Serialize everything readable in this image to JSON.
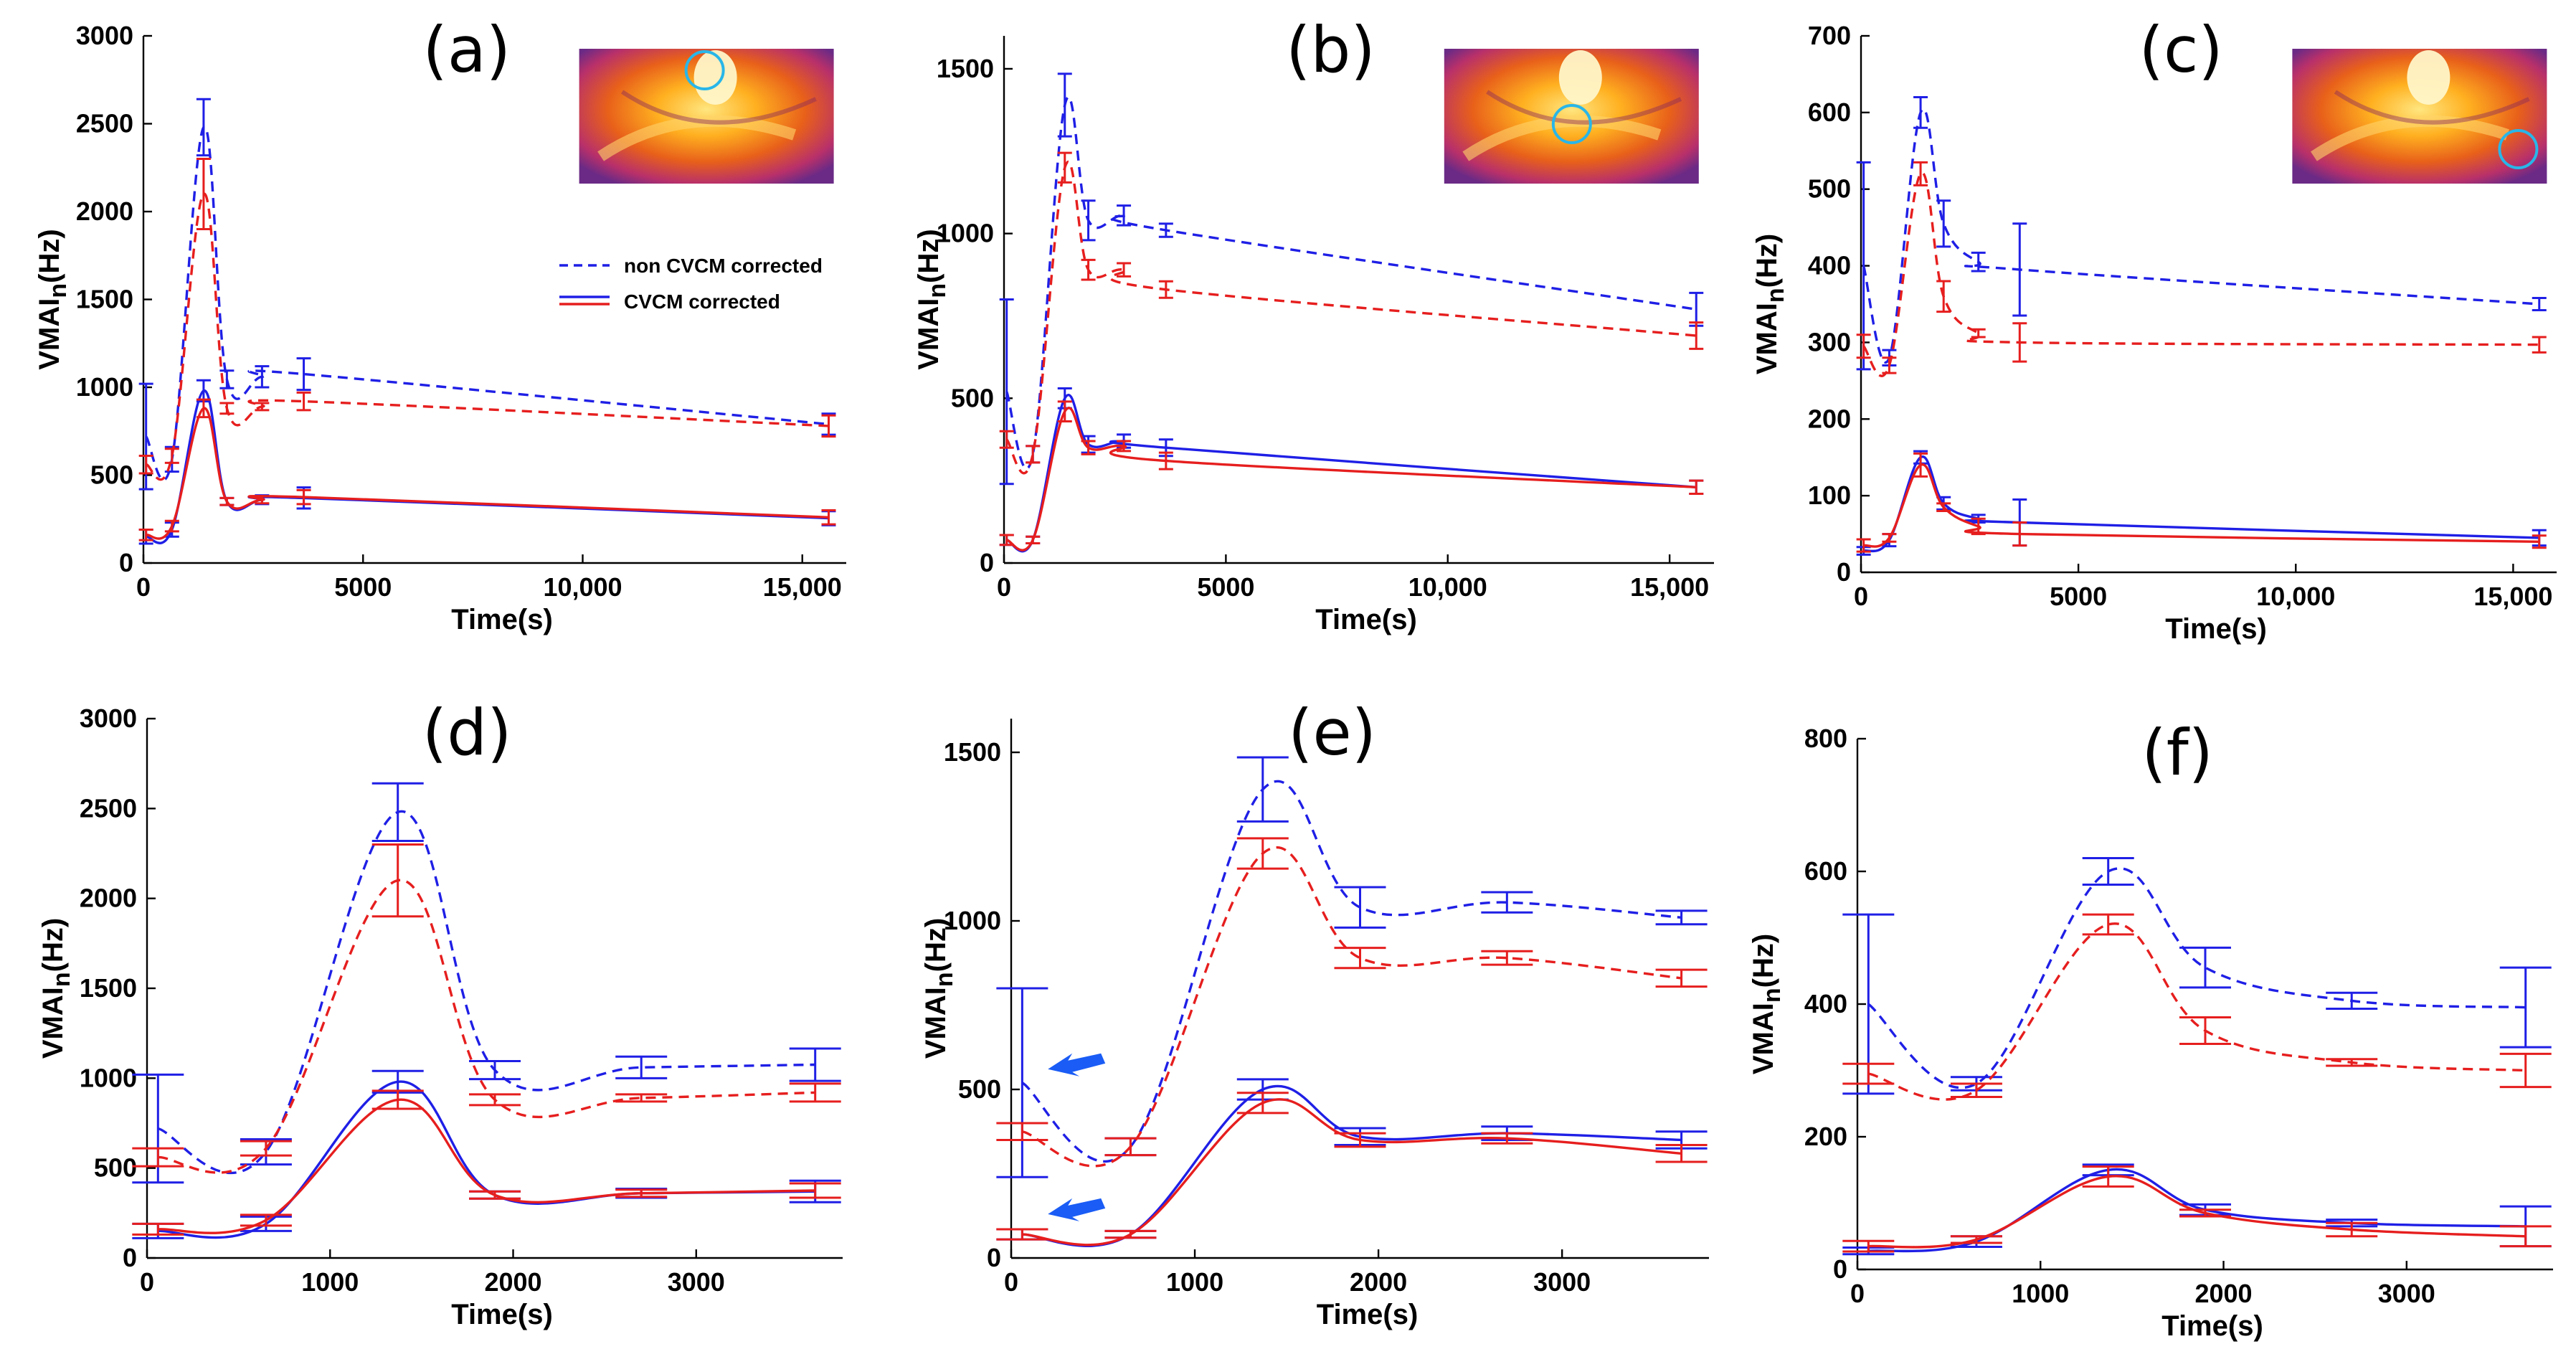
{
  "colors": {
    "blue": "#1f1fe6",
    "red": "#e61e1e",
    "arrow": "#1a5cf5",
    "inset_circle": "#29b6e8"
  },
  "legend": {
    "dashed_label": "non CVCM corrected",
    "solid_label": "CVCM corrected"
  },
  "chart_data": [
    {
      "panel": "(a)",
      "type": "line",
      "xlabel": "Time(s)",
      "ylabel_main": "VMAI",
      "ylabel_sub": "n",
      "ylabel_unit": "(Hz)",
      "xlim": [
        0,
        16000
      ],
      "ylim": [
        0,
        3000
      ],
      "xticks": [
        0,
        5000,
        10000,
        15000
      ],
      "xtick_labels": [
        "0",
        "5000",
        "10,000",
        "15,000"
      ],
      "yticks": [
        0,
        500,
        1000,
        1500,
        2000,
        2500,
        3000
      ],
      "ytick_labels": [
        "0",
        "500",
        "1000",
        "1500",
        "2000",
        "2500",
        "3000"
      ],
      "inset": true,
      "inset_marker": "top",
      "series": [
        {
          "name": "non CVCM corrected, blue",
          "style": "dashed",
          "color": "blue",
          "x": [
            60,
            650,
            1370,
            1900,
            2700,
            3650,
            15600
          ],
          "y": [
            720,
            590,
            2480,
            1045,
            1060,
            1075,
            790
          ],
          "err": [
            300,
            70,
            160,
            50,
            60,
            90,
            60
          ]
        },
        {
          "name": "non CVCM corrected, red",
          "style": "dashed",
          "color": "red",
          "x": [
            60,
            650,
            1370,
            1900,
            2700,
            3650,
            15600
          ],
          "y": [
            560,
            610,
            2100,
            880,
            890,
            920,
            780
          ],
          "err": [
            50,
            40,
            200,
            30,
            20,
            50,
            60
          ]
        },
        {
          "name": "CVCM corrected, blue",
          "style": "solid",
          "color": "blue",
          "x": [
            60,
            650,
            1370,
            1900,
            2700,
            3650,
            15600
          ],
          "y": [
            150,
            190,
            980,
            350,
            360,
            370,
            255
          ],
          "err": [
            40,
            40,
            60,
            20,
            25,
            60,
            40
          ]
        },
        {
          "name": "CVCM corrected, red",
          "style": "solid",
          "color": "red",
          "x": [
            60,
            650,
            1370,
            1900,
            2700,
            3650,
            15600
          ],
          "y": [
            160,
            210,
            880,
            350,
            360,
            375,
            260
          ],
          "err": [
            30,
            30,
            50,
            20,
            20,
            40,
            40
          ]
        }
      ]
    },
    {
      "panel": "(b)",
      "type": "line",
      "xlabel": "Time(s)",
      "ylabel_main": "VMAI",
      "ylabel_sub": "n",
      "ylabel_unit": "(Hz)",
      "xlim": [
        0,
        16000
      ],
      "ylim": [
        0,
        1600
      ],
      "xticks": [
        0,
        5000,
        10000,
        15000
      ],
      "xtick_labels": [
        "0",
        "5000",
        "10,000",
        "15,000"
      ],
      "yticks": [
        0,
        500,
        1000,
        1500
      ],
      "ytick_labels": [
        "0",
        "500",
        "1000",
        "1500"
      ],
      "inset": true,
      "inset_marker": "center",
      "series": [
        {
          "name": "non CVCM corrected, blue",
          "style": "dashed",
          "color": "blue",
          "x": [
            60,
            650,
            1370,
            1900,
            2700,
            3650,
            15600
          ],
          "y": [
            520,
            330,
            1390,
            1040,
            1055,
            1010,
            770
          ],
          "err": [
            280,
            25,
            95,
            60,
            30,
            20,
            50
          ]
        },
        {
          "name": "non CVCM corrected, red",
          "style": "dashed",
          "color": "red",
          "x": [
            60,
            650,
            1370,
            1900,
            2700,
            3650,
            15600
          ],
          "y": [
            375,
            330,
            1200,
            890,
            890,
            830,
            690
          ],
          "err": [
            25,
            25,
            45,
            30,
            20,
            25,
            40
          ]
        },
        {
          "name": "CVCM corrected, blue",
          "style": "solid",
          "color": "blue",
          "x": [
            60,
            650,
            1370,
            1900,
            2700,
            3650,
            15600
          ],
          "y": [
            70,
            70,
            500,
            360,
            370,
            350,
            230
          ],
          "err": [
            15,
            10,
            30,
            25,
            20,
            25,
            20
          ]
        },
        {
          "name": "CVCM corrected, red",
          "style": "solid",
          "color": "red",
          "x": [
            60,
            650,
            1370,
            1900,
            2700,
            3650,
            15600
          ],
          "y": [
            70,
            70,
            460,
            350,
            355,
            310,
            230
          ],
          "err": [
            15,
            10,
            30,
            20,
            15,
            25,
            20
          ]
        }
      ]
    },
    {
      "panel": "(c)",
      "type": "line",
      "xlabel": "Time(s)",
      "ylabel_main": "VMAI",
      "ylabel_sub": "n",
      "ylabel_unit": "(Hz)",
      "xlim": [
        0,
        16000
      ],
      "ylim": [
        0,
        700
      ],
      "xticks": [
        0,
        5000,
        10000,
        15000
      ],
      "xtick_labels": [
        "0",
        "5000",
        "10,000",
        "15,000"
      ],
      "yticks": [
        0,
        100,
        200,
        300,
        400,
        500,
        600,
        700
      ],
      "ytick_labels": [
        "0",
        "100",
        "200",
        "300",
        "400",
        "500",
        "600",
        "700"
      ],
      "inset": true,
      "inset_marker": "right",
      "series": [
        {
          "name": "non CVCM corrected, blue",
          "style": "dashed",
          "color": "blue",
          "x": [
            60,
            650,
            1370,
            1900,
            2700,
            3650,
            15600
          ],
          "y": [
            400,
            280,
            600,
            455,
            405,
            395,
            350
          ],
          "err": [
            135,
            10,
            20,
            30,
            12,
            60,
            8
          ]
        },
        {
          "name": "non CVCM corrected, red",
          "style": "dashed",
          "color": "red",
          "x": [
            60,
            650,
            1370,
            1900,
            2700,
            3650,
            15600
          ],
          "y": [
            295,
            270,
            520,
            360,
            312,
            300,
            297
          ],
          "err": [
            15,
            10,
            15,
            20,
            5,
            25,
            10
          ]
        },
        {
          "name": "CVCM corrected, blue",
          "style": "solid",
          "color": "blue",
          "x": [
            60,
            650,
            1370,
            1900,
            2700,
            3650,
            15600
          ],
          "y": [
            28,
            42,
            150,
            90,
            70,
            65,
            45
          ],
          "err": [
            5,
            8,
            8,
            8,
            5,
            30,
            10
          ]
        },
        {
          "name": "CVCM corrected, red",
          "style": "solid",
          "color": "red",
          "x": [
            60,
            650,
            1370,
            1900,
            2700,
            3650,
            15600
          ],
          "y": [
            35,
            45,
            140,
            85,
            60,
            50,
            40
          ],
          "err": [
            8,
            5,
            15,
            5,
            10,
            15,
            8
          ]
        }
      ]
    },
    {
      "panel": "(d)",
      "type": "line",
      "xlabel": "Time(s)",
      "ylabel_main": "VMAI",
      "ylabel_sub": "n",
      "ylabel_unit": "(Hz)",
      "xlim": [
        0,
        3800
      ],
      "ylim": [
        0,
        3000
      ],
      "xticks": [
        0,
        1000,
        2000,
        3000
      ],
      "xtick_labels": [
        "0",
        "1000",
        "2000",
        "3000"
      ],
      "yticks": [
        0,
        500,
        1000,
        1500,
        2000,
        2500,
        3000
      ],
      "ytick_labels": [
        "0",
        "500",
        "1000",
        "1500",
        "2000",
        "2500",
        "3000"
      ],
      "inset": false,
      "series": [
        {
          "name": "non CVCM corrected, blue",
          "style": "dashed",
          "color": "blue",
          "x": [
            60,
            650,
            1370,
            1900,
            2700,
            3650
          ],
          "y": [
            720,
            590,
            2480,
            1045,
            1060,
            1075
          ],
          "err": [
            300,
            70,
            160,
            50,
            60,
            90
          ]
        },
        {
          "name": "non CVCM corrected, red",
          "style": "dashed",
          "color": "red",
          "x": [
            60,
            650,
            1370,
            1900,
            2700,
            3650
          ],
          "y": [
            560,
            610,
            2100,
            880,
            890,
            920
          ],
          "err": [
            50,
            40,
            200,
            30,
            20,
            50
          ]
        },
        {
          "name": "CVCM corrected, blue",
          "style": "solid",
          "color": "blue",
          "x": [
            60,
            650,
            1370,
            1900,
            2700,
            3650
          ],
          "y": [
            150,
            190,
            980,
            350,
            360,
            370
          ],
          "err": [
            40,
            40,
            60,
            20,
            25,
            60
          ]
        },
        {
          "name": "CVCM corrected, red",
          "style": "solid",
          "color": "red",
          "x": [
            60,
            650,
            1370,
            1900,
            2700,
            3650
          ],
          "y": [
            160,
            210,
            880,
            350,
            360,
            375
          ],
          "err": [
            30,
            30,
            50,
            20,
            20,
            40
          ]
        }
      ]
    },
    {
      "panel": "(e)",
      "type": "line",
      "xlabel": "Time(s)",
      "ylabel_main": "VMAI",
      "ylabel_sub": "n",
      "ylabel_unit": "(Hz)",
      "xlim": [
        0,
        3800
      ],
      "ylim": [
        0,
        1600
      ],
      "xticks": [
        0,
        1000,
        2000,
        3000
      ],
      "xtick_labels": [
        "0",
        "1000",
        "2000",
        "3000"
      ],
      "yticks": [
        0,
        500,
        1000,
        1500
      ],
      "ytick_labels": [
        "0",
        "500",
        "1000",
        "1500"
      ],
      "inset": false,
      "arrows": [
        {
          "x": 200,
          "y": 560
        },
        {
          "x": 200,
          "y": 130
        }
      ],
      "series": [
        {
          "name": "non CVCM corrected, blue",
          "style": "dashed",
          "color": "blue",
          "x": [
            60,
            650,
            1370,
            1900,
            2700,
            3650
          ],
          "y": [
            520,
            330,
            1390,
            1040,
            1055,
            1010
          ],
          "err": [
            280,
            25,
            95,
            60,
            30,
            20
          ]
        },
        {
          "name": "non CVCM corrected, red",
          "style": "dashed",
          "color": "red",
          "x": [
            60,
            650,
            1370,
            1900,
            2700,
            3650
          ],
          "y": [
            375,
            330,
            1200,
            890,
            890,
            830
          ],
          "err": [
            25,
            25,
            45,
            30,
            20,
            25
          ]
        },
        {
          "name": "CVCM corrected, blue",
          "style": "solid",
          "color": "blue",
          "x": [
            60,
            650,
            1370,
            1900,
            2700,
            3650
          ],
          "y": [
            70,
            70,
            500,
            360,
            370,
            350
          ],
          "err": [
            15,
            10,
            30,
            25,
            20,
            25
          ]
        },
        {
          "name": "CVCM corrected, red",
          "style": "solid",
          "color": "red",
          "x": [
            60,
            650,
            1370,
            1900,
            2700,
            3650
          ],
          "y": [
            70,
            70,
            460,
            350,
            355,
            310
          ],
          "err": [
            15,
            10,
            30,
            20,
            15,
            25
          ]
        }
      ]
    },
    {
      "panel": "(f)",
      "type": "line",
      "xlabel": "Time(s)",
      "ylabel_main": "VMAI",
      "ylabel_sub": "n",
      "ylabel_unit": "(Hz)",
      "xlim": [
        0,
        3800
      ],
      "ylim": [
        0,
        800
      ],
      "xticks": [
        0,
        1000,
        2000,
        3000
      ],
      "xtick_labels": [
        "0",
        "1000",
        "2000",
        "3000"
      ],
      "yticks": [
        0,
        200,
        400,
        600,
        800
      ],
      "ytick_labels": [
        "0",
        "200",
        "400",
        "600",
        "800"
      ],
      "inset": false,
      "series": [
        {
          "name": "non CVCM corrected, blue",
          "style": "dashed",
          "color": "blue",
          "x": [
            60,
            650,
            1370,
            1900,
            2700,
            3650
          ],
          "y": [
            400,
            280,
            600,
            455,
            405,
            395
          ],
          "err": [
            135,
            10,
            20,
            30,
            12,
            60
          ]
        },
        {
          "name": "non CVCM corrected, red",
          "style": "dashed",
          "color": "red",
          "x": [
            60,
            650,
            1370,
            1900,
            2700,
            3650
          ],
          "y": [
            295,
            270,
            520,
            360,
            312,
            300
          ],
          "err": [
            15,
            10,
            15,
            20,
            5,
            25
          ]
        },
        {
          "name": "CVCM corrected, blue",
          "style": "solid",
          "color": "blue",
          "x": [
            60,
            650,
            1370,
            1900,
            2700,
            3650
          ],
          "y": [
            28,
            42,
            150,
            90,
            70,
            65
          ],
          "err": [
            5,
            8,
            8,
            8,
            5,
            30
          ]
        },
        {
          "name": "CVCM corrected, red",
          "style": "solid",
          "color": "red",
          "x": [
            60,
            650,
            1370,
            1900,
            2700,
            3650
          ],
          "y": [
            35,
            45,
            140,
            85,
            60,
            50
          ],
          "err": [
            8,
            5,
            15,
            5,
            10,
            15
          ]
        }
      ]
    }
  ]
}
